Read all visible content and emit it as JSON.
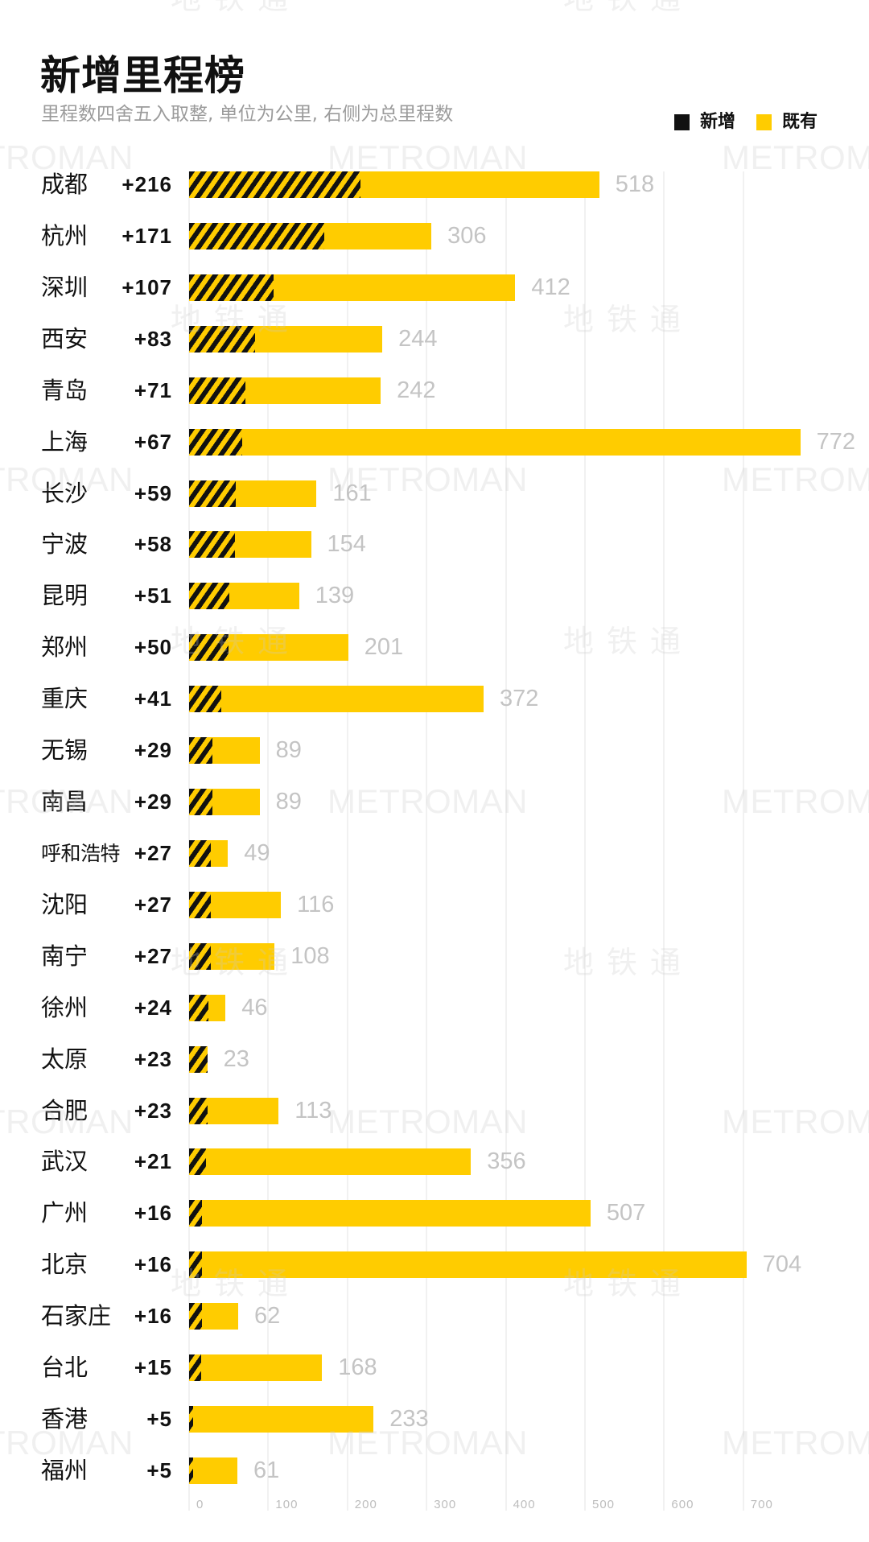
{
  "header": {
    "title": "新增里程榜",
    "subtitle": "里程数四舍五入取整, 单位为公里, 右侧为总里程数"
  },
  "legend": {
    "items": [
      {
        "label": "新增",
        "color": "#111111"
      },
      {
        "label": "既有",
        "color": "#FFCC00"
      }
    ]
  },
  "watermarks": {
    "en": "METROMAN",
    "zh": "地铁通"
  },
  "colors": {
    "existing": "#FFCC00",
    "new": "#111111",
    "value_label": "#C4C4C4",
    "grid": "#F1F1F1",
    "tick": "#BDBDBD",
    "subtitle": "#9B9B9B"
  },
  "chart_data": {
    "type": "bar",
    "orientation": "horizontal",
    "stacked": true,
    "title": "新增里程榜",
    "subtitle": "里程数四舍五入取整, 单位为公里, 右侧为总里程数",
    "xlabel": "",
    "ylabel": "",
    "categories": [
      "成都",
      "杭州",
      "深圳",
      "西安",
      "青岛",
      "上海",
      "长沙",
      "宁波",
      "昆明",
      "郑州",
      "重庆",
      "无锡",
      "南昌",
      "呼和浩特",
      "沈阳",
      "南宁",
      "徐州",
      "太原",
      "合肥",
      "武汉",
      "广州",
      "北京",
      "石家庄",
      "台北",
      "香港",
      "福州"
    ],
    "series": [
      {
        "name": "新增",
        "pattern": "black-yellow diagonal stripes",
        "values": [
          216,
          171,
          107,
          83,
          71,
          67,
          59,
          58,
          51,
          50,
          41,
          29,
          29,
          27,
          27,
          27,
          24,
          23,
          23,
          21,
          16,
          16,
          16,
          15,
          5,
          5
        ]
      },
      {
        "name": "既有",
        "color": "#FFCC00",
        "values": [
          302,
          135,
          305,
          161,
          171,
          705,
          102,
          96,
          88,
          151,
          331,
          60,
          60,
          22,
          89,
          81,
          22,
          0,
          90,
          335,
          491,
          688,
          46,
          153,
          228,
          56
        ]
      }
    ],
    "new_labels": [
      "+216",
      "+171",
      "+107",
      "+83",
      "+71",
      "+67",
      "+59",
      "+58",
      "+51",
      "+50",
      "+41",
      "+29",
      "+29",
      "+27",
      "+27",
      "+27",
      "+24",
      "+23",
      "+23",
      "+21",
      "+16",
      "+16",
      "+16",
      "+15",
      "+5",
      "+5"
    ],
    "totals": [
      518,
      306,
      412,
      244,
      242,
      772,
      161,
      154,
      139,
      201,
      372,
      89,
      89,
      49,
      116,
      108,
      46,
      23,
      113,
      356,
      507,
      704,
      62,
      168,
      233,
      61
    ],
    "xticks": [
      0,
      100,
      200,
      300,
      400,
      500,
      600,
      700
    ],
    "xlim": [
      0,
      800
    ],
    "grid": "vertical",
    "legend_position": "top-right",
    "unit": "公里"
  }
}
